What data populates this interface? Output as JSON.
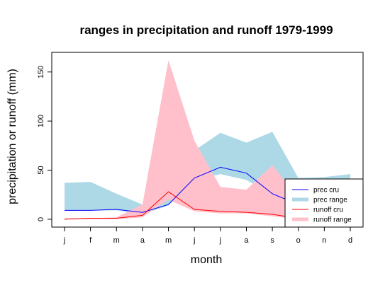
{
  "chart_data": {
    "type": "area",
    "title": "ranges in precipitation and runoff 1979-1999",
    "xlabel": "month",
    "ylabel": "precipitation or runoff (mm)",
    "categories": [
      "j",
      "f",
      "m",
      "a",
      "m",
      "j",
      "j",
      "a",
      "s",
      "o",
      "n",
      "d"
    ],
    "ylim": [
      -8,
      170
    ],
    "yticks": [
      0,
      50,
      100,
      150
    ],
    "yticks_labels": [
      "0",
      "50",
      "100",
      "150"
    ],
    "grid": false,
    "legend_placement": "bottom-right",
    "series": [
      {
        "name": "prec range",
        "kind": "band",
        "color": "#add8e6",
        "lower": [
          9,
          9,
          9,
          5,
          14,
          40,
          46,
          40,
          25,
          20,
          15,
          15
        ],
        "upper": [
          37,
          38,
          26,
          15,
          20,
          70,
          88,
          78,
          89,
          42,
          43,
          46
        ]
      },
      {
        "name": "runoff range",
        "kind": "band",
        "color": "#ffc0cb",
        "lower": [
          0,
          0,
          0,
          2,
          20,
          8,
          6,
          6,
          3,
          0,
          0,
          0
        ],
        "upper": [
          1,
          1,
          2,
          15,
          162,
          80,
          33,
          30,
          55,
          22,
          10,
          5
        ]
      },
      {
        "name": "prec cru",
        "kind": "line",
        "color": "#0000ff",
        "values": [
          9,
          9,
          10,
          7,
          15,
          42,
          53,
          47,
          26,
          15,
          16,
          19
        ]
      },
      {
        "name": "runoff cru",
        "kind": "line",
        "color": "#ff0000",
        "values": [
          0,
          1,
          1,
          4,
          28,
          10,
          8,
          7,
          5,
          1,
          1,
          1
        ]
      }
    ],
    "legend": [
      {
        "label": "prec cru",
        "style": "line",
        "color": "#0000ff"
      },
      {
        "label": "prec range",
        "style": "band",
        "color": "#add8e6"
      },
      {
        "label": "runoff cru",
        "style": "line",
        "color": "#ff0000"
      },
      {
        "label": "runoff range",
        "style": "band",
        "color": "#ffc0cb"
      }
    ]
  }
}
